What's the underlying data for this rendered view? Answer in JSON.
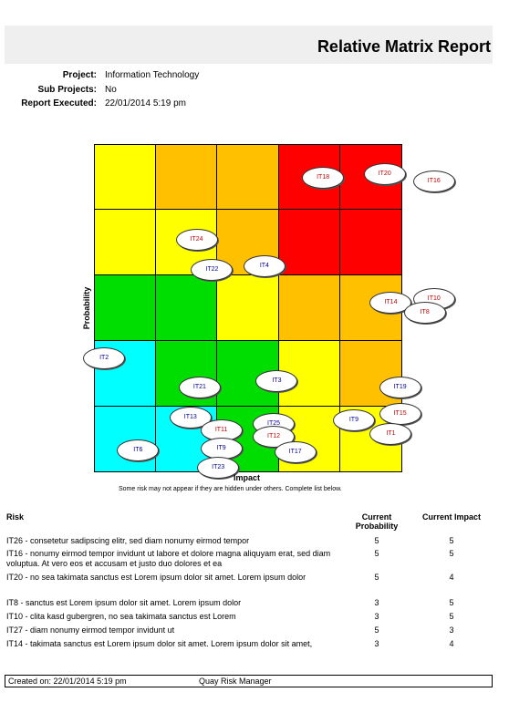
{
  "report": {
    "title": "Relative Matrix Report"
  },
  "meta": [
    {
      "key": "Project:",
      "value": "Information Technology"
    },
    {
      "key": "Sub Projects:",
      "value": "No"
    },
    {
      "key": "Report Executed:",
      "value": "22/01/2014 5:19 pm"
    }
  ],
  "matrix": {
    "x_label": "Impact",
    "y_label": "Probability",
    "colors": {
      "red": "#ff0000",
      "orange": "#ffc000",
      "yellow": "#ffff00",
      "green": "#00dd00",
      "cyan": "#00ffff"
    },
    "rows": [
      [
        "yellow",
        "orange",
        "orange",
        "red",
        "red"
      ],
      [
        "yellow",
        "yellow",
        "orange",
        "red",
        "red"
      ],
      [
        "green",
        "green",
        "yellow",
        "orange",
        "orange"
      ],
      [
        "cyan",
        "green",
        "green",
        "yellow",
        "orange"
      ],
      [
        "cyan",
        "cyan",
        "green",
        "yellow",
        "yellow"
      ]
    ],
    "bubbles": [
      {
        "label": "IT18",
        "color": "red",
        "impact": 3.7,
        "probability": 4.5
      },
      {
        "label": "IT20",
        "color": "red",
        "impact": 4.7,
        "probability": 4.55
      },
      {
        "label": "IT16",
        "color": "red",
        "impact": 5.5,
        "probability": 4.45
      },
      {
        "label": "IT24",
        "color": "red",
        "impact": 1.65,
        "probability": 3.55
      },
      {
        "label": "IT22",
        "color": "blue",
        "impact": 1.9,
        "probability": 3.1
      },
      {
        "label": "IT4",
        "color": "blue",
        "impact": 2.75,
        "probability": 3.15
      },
      {
        "label": "IT14",
        "color": "red",
        "impact": 4.8,
        "probability": 2.6
      },
      {
        "label": "IT10",
        "color": "red",
        "impact": 5.5,
        "probability": 2.65
      },
      {
        "label": "IT8",
        "color": "red",
        "impact": 5.35,
        "probability": 2.45
      },
      {
        "label": "IT2",
        "color": "blue",
        "impact": 0.15,
        "probability": 1.75
      },
      {
        "label": "IT3",
        "color": "blue",
        "impact": 2.95,
        "probability": 1.4
      },
      {
        "label": "IT21",
        "color": "blue",
        "impact": 1.7,
        "probability": 1.3
      },
      {
        "label": "IT19",
        "color": "blue",
        "impact": 4.95,
        "probability": 1.3
      },
      {
        "label": "IT13",
        "color": "blue",
        "impact": 1.55,
        "probability": 0.85
      },
      {
        "label": "IT15",
        "color": "red",
        "impact": 4.95,
        "probability": 0.9
      },
      {
        "label": "IT9",
        "color": "blue",
        "impact": 4.2,
        "probability": 0.8
      },
      {
        "label": "IT25",
        "color": "blue",
        "impact": 2.9,
        "probability": 0.75
      },
      {
        "label": "IT11",
        "color": "red",
        "impact": 2.05,
        "probability": 0.65
      },
      {
        "label": "IT12",
        "color": "red",
        "impact": 2.9,
        "probability": 0.55
      },
      {
        "label": "IT1",
        "color": "red",
        "impact": 4.8,
        "probability": 0.6
      },
      {
        "label": "IT6",
        "color": "blue",
        "impact": 0.7,
        "probability": 0.35
      },
      {
        "label": "IT9",
        "color": "blue",
        "impact": 2.05,
        "probability": 0.37
      },
      {
        "label": "IT17",
        "color": "blue",
        "impact": 3.25,
        "probability": 0.32
      },
      {
        "label": "IT23",
        "color": "blue",
        "impact": 2.0,
        "probability": 0.08
      }
    ],
    "note": "Some risk may not appear if they are hidden under others. Complete list below."
  },
  "table": {
    "headers": {
      "risk": "Risk",
      "probability": "Current Probability",
      "impact": "Current Impact"
    },
    "rows": [
      {
        "risk": "IT26 - consetetur sadipscing elitr, sed diam nonumy eirmod tempor",
        "probability": "5",
        "impact": "5"
      },
      {
        "risk": "IT16 - nonumy eirmod tempor invidunt ut labore et dolore magna aliquyam erat, sed diam voluptua. At vero eos et accusam et justo duo dolores et ea",
        "probability": "5",
        "impact": "5"
      },
      {
        "risk": "IT20 - no sea takimata sanctus est Lorem ipsum dolor sit amet. Lorem ipsum dolor",
        "probability": "5",
        "impact": "4"
      },
      {
        "risk": "IT8 - sanctus est Lorem ipsum dolor sit amet. Lorem ipsum dolor",
        "probability": "3",
        "impact": "5"
      },
      {
        "risk": "IT10 - clita kasd gubergren, no sea takimata sanctus est Lorem",
        "probability": "3",
        "impact": "5"
      },
      {
        "risk": "IT27 - diam nonumy eirmod tempor invidunt ut",
        "probability": "5",
        "impact": "3"
      },
      {
        "risk": "IT14 - takimata sanctus est Lorem ipsum dolor sit amet. Lorem ipsum dolor sit amet,",
        "probability": "3",
        "impact": "4"
      }
    ]
  },
  "footer": {
    "created": "Created on: 22/01/2014 5:19 pm",
    "app": "Quay Risk Manager"
  }
}
